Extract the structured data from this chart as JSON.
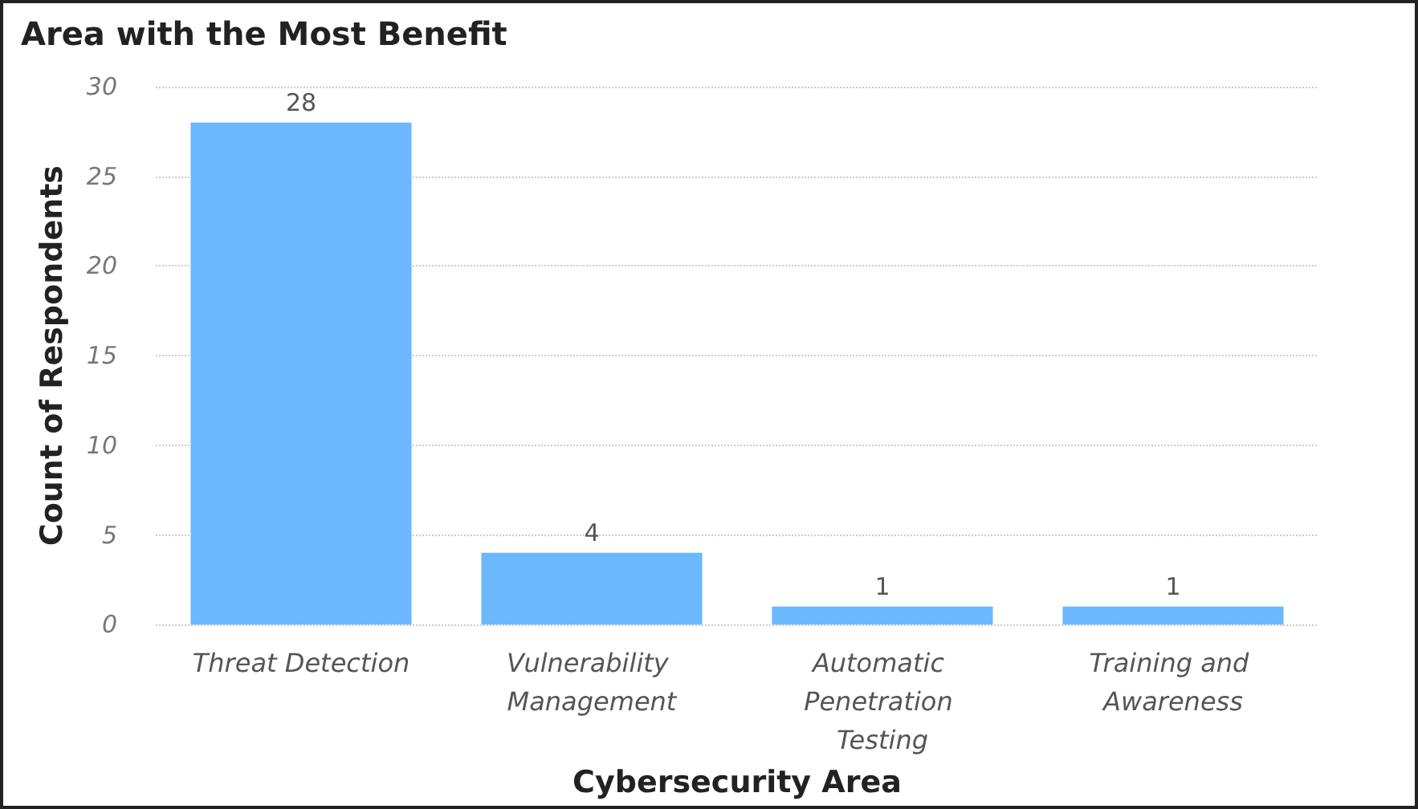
{
  "chart_data": {
    "type": "bar",
    "title": "Area with the Most Benefit",
    "xlabel": "Cybersecurity Area",
    "ylabel": "Count of Respondents",
    "categories": [
      "Threat Detection",
      "Vulnerability Management",
      "Automatic Penetration Testing",
      "Training and Awareness"
    ],
    "values": [
      28,
      4,
      1,
      1
    ],
    "color": "#6cb8ff",
    "ylim": [
      0,
      30
    ],
    "yticks": [
      0,
      5,
      10,
      15,
      20,
      25,
      30
    ],
    "grid": "y",
    "data_labels": true
  }
}
